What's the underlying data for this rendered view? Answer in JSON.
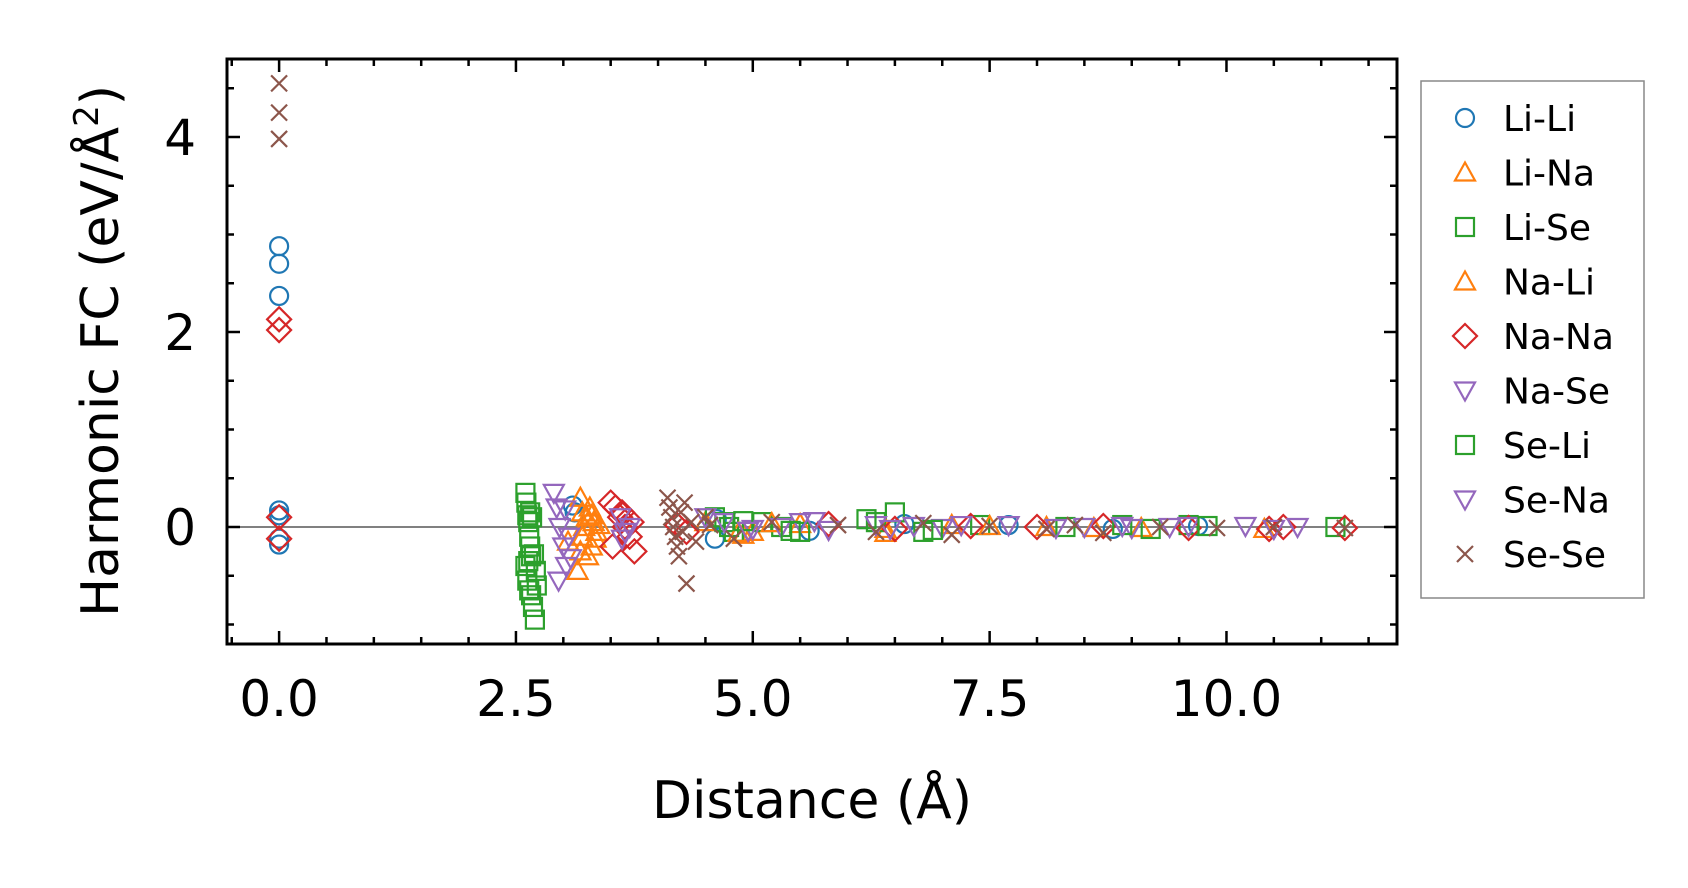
{
  "chart_data": {
    "type": "scatter",
    "title": "",
    "xlabel": "Distance (Å)",
    "ylabel_main": "Harmonic FC (eV/Å",
    "ylabel_sup": "2",
    "ylabel_close": ")",
    "xlim": [
      -0.55,
      11.8
    ],
    "ylim": [
      -1.2,
      4.8
    ],
    "x_ticks": [
      0.0,
      2.5,
      5.0,
      7.5,
      10.0
    ],
    "x_tick_labels": [
      "0.0",
      "2.5",
      "5.0",
      "7.5",
      "10.0"
    ],
    "y_ticks": [
      0,
      2,
      4
    ],
    "y_tick_labels": [
      "0",
      "2",
      "4"
    ],
    "reference_line_y": 0,
    "legend_position": "outside-right",
    "series": [
      {
        "name": "Li-Li",
        "marker": "circle",
        "color": "#1f77b4",
        "x": [
          0,
          0,
          0,
          0,
          0,
          0,
          0,
          3.1,
          3.12,
          4.6,
          4.62,
          5.6,
          6.6,
          7.7,
          8.8,
          9.7
        ],
        "y": [
          2.88,
          2.7,
          2.37,
          0.17,
          0.12,
          -0.12,
          -0.18,
          0.22,
          0.15,
          -0.12,
          0.08,
          -0.04,
          0.03,
          0.02,
          -0.02,
          0.01
        ]
      },
      {
        "name": "Li-Na",
        "marker": "triangle-up",
        "color": "#ff7f0e",
        "x": [
          3.15,
          3.18,
          3.2,
          3.22,
          3.25,
          3.28,
          3.3,
          3.32,
          3.18,
          3.05,
          3.35,
          4.5,
          4.9,
          5.0,
          5.5,
          6.4,
          7.1,
          8.1,
          9.1,
          10.4
        ],
        "y": [
          -0.45,
          -0.25,
          -0.1,
          0.0,
          0.1,
          0.2,
          -0.2,
          0.05,
          0.3,
          -0.15,
          -0.05,
          0.05,
          -0.08,
          -0.05,
          0.03,
          -0.06,
          0.02,
          0.0,
          -0.01,
          -0.02
        ]
      },
      {
        "name": "Li-Se",
        "marker": "square",
        "color": "#2ca02c",
        "x": [
          2.6,
          2.61,
          2.62,
          2.63,
          2.64,
          2.65,
          2.66,
          2.6,
          2.62,
          2.64,
          2.66,
          2.68,
          2.7,
          2.72,
          2.63,
          2.65,
          4.6,
          4.7,
          4.75,
          4.8,
          5.1,
          5.3,
          5.5,
          6.3,
          6.5,
          6.8,
          7.4,
          8.3,
          9.2,
          9.6,
          11.15
        ],
        "y": [
          0.35,
          0.25,
          0.12,
          0.05,
          -0.1,
          -0.2,
          -0.3,
          -0.4,
          -0.55,
          -0.65,
          -0.7,
          -0.82,
          -0.95,
          -0.6,
          -0.35,
          0.15,
          0.1,
          0.05,
          0.0,
          -0.05,
          0.05,
          0.0,
          -0.05,
          0.05,
          0.15,
          -0.05,
          0.02,
          0.0,
          -0.02,
          0.02,
          0.0
        ]
      },
      {
        "name": "Na-Li",
        "marker": "triangle-up",
        "color": "#ff7f0e",
        "x": [
          3.2,
          3.26,
          3.3,
          3.34,
          3.38,
          4.85,
          5.2,
          6.4,
          7.5,
          8.6
        ],
        "y": [
          0.15,
          -0.3,
          0.12,
          -0.12,
          0.02,
          -0.06,
          0.04,
          -0.02,
          0.01,
          -0.01
        ]
      },
      {
        "name": "Na-Na",
        "marker": "diamond",
        "color": "#d62728",
        "x": [
          0,
          0,
          0,
          0,
          3.5,
          3.55,
          3.6,
          3.65,
          3.7,
          3.75,
          3.52,
          3.62,
          3.72,
          4.2,
          4.3,
          5.8,
          6.5,
          7.3,
          8.0,
          8.7,
          9.6,
          10.45,
          10.6,
          11.25
        ],
        "y": [
          2.13,
          2.02,
          0.1,
          -0.12,
          0.25,
          0.2,
          0.1,
          0.0,
          -0.1,
          -0.25,
          -0.2,
          0.15,
          0.05,
          0.02,
          -0.05,
          0.03,
          -0.02,
          0.01,
          0.0,
          0.01,
          -0.01,
          -0.02,
          0.0,
          -0.01
        ]
      },
      {
        "name": "Na-Se",
        "marker": "triangle-down",
        "color": "#9467bd",
        "x": [
          2.9,
          2.93,
          2.96,
          3.0,
          3.03,
          3.06,
          2.95,
          3.6,
          3.65,
          3.7,
          4.5,
          4.7,
          5.0,
          5.3,
          5.5,
          5.8,
          6.3,
          6.7,
          7.0,
          7.7,
          8.5,
          9.0,
          9.6,
          10.5,
          10.75
        ],
        "y": [
          0.35,
          0.2,
          0.0,
          -0.2,
          -0.4,
          -0.1,
          -0.55,
          0.1,
          -0.05,
          0.0,
          0.1,
          0.05,
          -0.02,
          0.0,
          0.05,
          -0.03,
          0.02,
          0.01,
          -0.01,
          0.02,
          0.0,
          -0.01,
          0.01,
          -0.02,
          0.0
        ]
      },
      {
        "name": "Se-Li",
        "marker": "square",
        "color": "#2ca02c",
        "x": [
          2.67,
          2.69,
          2.71,
          4.9,
          5.4,
          6.2,
          6.9,
          8.9,
          9.8
        ],
        "y": [
          0.1,
          -0.28,
          -0.45,
          0.06,
          -0.04,
          0.08,
          -0.03,
          0.02,
          0.01
        ]
      },
      {
        "name": "Se-Na",
        "marker": "triangle-down",
        "color": "#9467bd",
        "x": [
          3.02,
          3.08,
          3.62,
          4.95,
          5.65,
          6.45,
          7.2,
          8.2,
          8.9,
          9.4,
          10.2
        ],
        "y": [
          0.18,
          -0.32,
          -0.12,
          -0.04,
          0.06,
          -0.02,
          0.02,
          -0.01,
          0.01,
          0.0,
          0.01
        ]
      },
      {
        "name": "Se-Se",
        "marker": "x",
        "color": "#8c564b",
        "x": [
          0,
          0,
          0,
          4.1,
          4.12,
          4.14,
          4.16,
          4.18,
          4.2,
          4.22,
          4.24,
          4.26,
          4.28,
          4.3,
          4.35,
          4.4,
          4.5,
          4.55,
          4.8,
          5.2,
          5.9,
          6.3,
          6.8,
          7.1,
          7.5,
          8.1,
          8.4,
          8.7,
          9.3,
          9.9,
          10.5,
          11.25
        ],
        "y": [
          4.55,
          4.25,
          3.98,
          0.3,
          0.2,
          0.1,
          0.0,
          -0.1,
          -0.2,
          -0.3,
          0.15,
          -0.05,
          0.25,
          -0.58,
          0.05,
          -0.15,
          0.1,
          0.02,
          -0.12,
          0.05,
          0.02,
          -0.05,
          0.04,
          -0.08,
          0.01,
          -0.02,
          0.02,
          -0.06,
          0.0,
          -0.01,
          0.0,
          -0.01
        ]
      }
    ]
  }
}
